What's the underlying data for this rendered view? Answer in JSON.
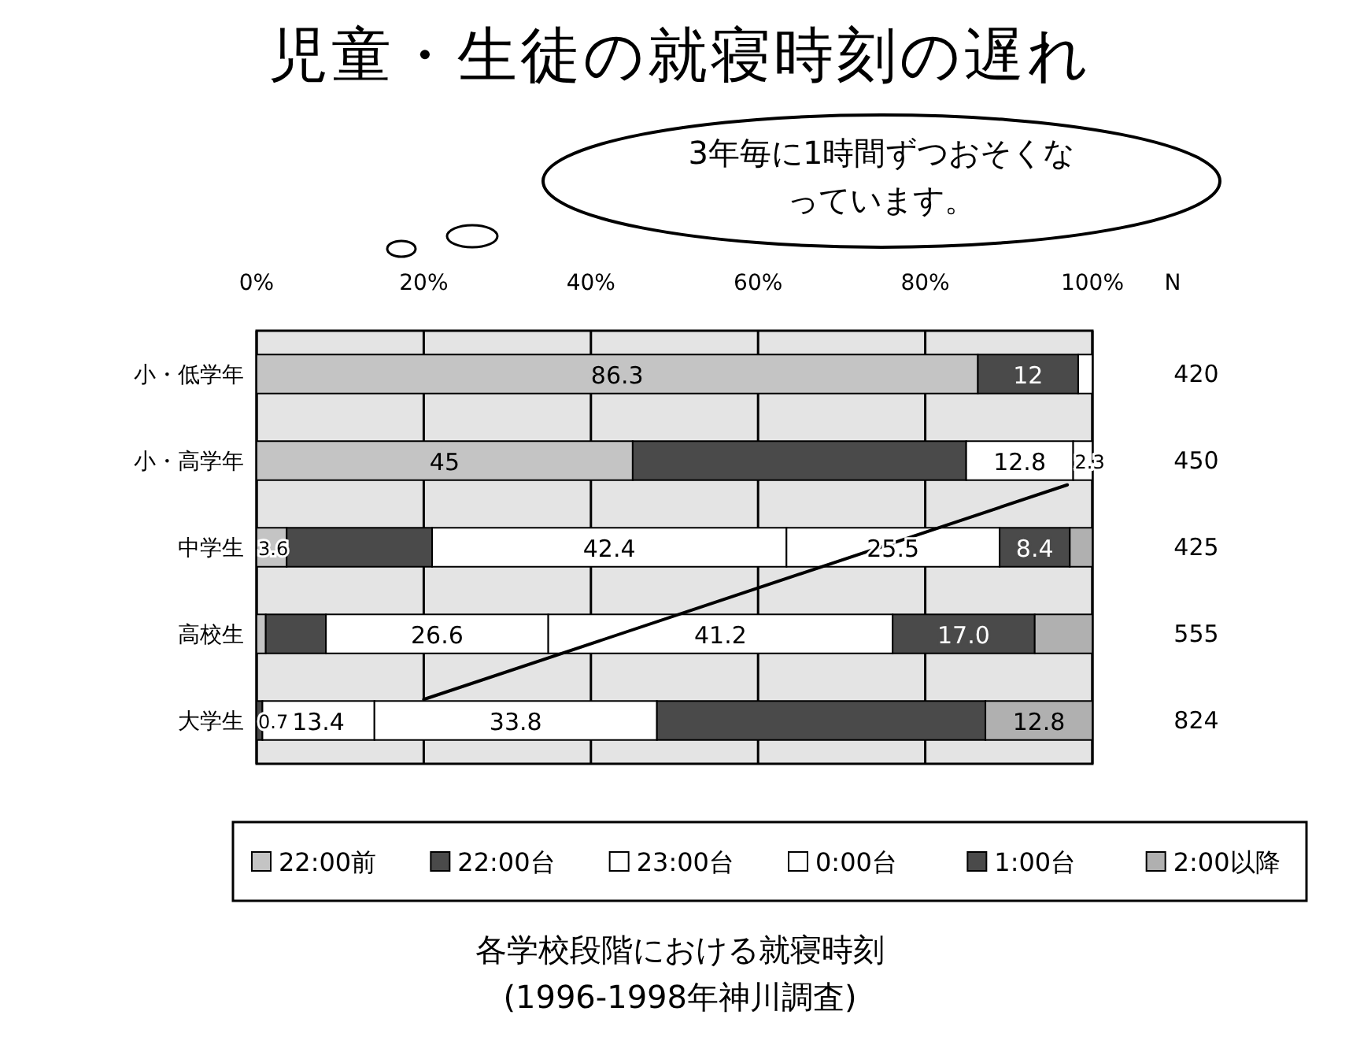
{
  "chart_data": {
    "type": "bar",
    "orientation": "horizontal",
    "stacked": true,
    "title": "児童・生徒の就寝時刻の遅れ",
    "categories": [
      "小・低学年",
      "小・高学年",
      "中学生",
      "高校生",
      "大学生"
    ],
    "xlim": [
      0,
      100
    ],
    "xticks": [
      {
        "value": 0,
        "label": "0%"
      },
      {
        "value": 20,
        "label": "20%"
      },
      {
        "value": 40,
        "label": "40%"
      },
      {
        "value": 60,
        "label": "60%"
      },
      {
        "value": 80,
        "label": "80%"
      },
      {
        "value": 100,
        "label": "100%"
      }
    ],
    "grid": "x",
    "legend": "bottom",
    "series": [
      {
        "name": "22:00前",
        "color": "#c4c4c4",
        "values": [
          86.3,
          45,
          3.6,
          1.1,
          null
        ],
        "value_labels": [
          "86.3",
          "45",
          "3.6",
          null,
          null
        ]
      },
      {
        "name": "22:00台",
        "color": "#4a4a4a",
        "values": [
          12,
          39.9,
          17.4,
          7.2,
          0.7
        ],
        "value_labels": [
          "12",
          null,
          null,
          null,
          "0.7"
        ]
      },
      {
        "name": "23:00台",
        "color": "#ffffff",
        "values": [
          1.7,
          12.8,
          42.4,
          26.6,
          13.4
        ],
        "value_labels": [
          null,
          "12.8",
          "42.4",
          "26.6",
          "13.4"
        ]
      },
      {
        "name": "0:00台",
        "color": "#ffffff",
        "values": [
          null,
          2.3,
          25.5,
          41.2,
          33.8
        ],
        "value_labels": [
          null,
          "2.3",
          "25.5",
          "41.2",
          "33.8"
        ]
      },
      {
        "name": "1:00台",
        "color": "#4a4a4a",
        "values": [
          null,
          null,
          8.4,
          17.0,
          39.3
        ],
        "value_labels": [
          null,
          null,
          "8.4",
          "17.0",
          null
        ]
      },
      {
        "name": "2:00以降",
        "color": "#b0b0b0",
        "values": [
          null,
          null,
          2.7,
          6.9,
          12.8
        ],
        "value_labels": [
          null,
          null,
          null,
          null,
          "12.8"
        ]
      }
    ],
    "annotations": [
      "3年毎に1時間ずつおそくなっています。",
      "N",
      "420",
      "450",
      "425",
      "555",
      "824",
      "各学校段階における就寝時刻",
      "(1996-1998年神川調査)"
    ]
  }
}
